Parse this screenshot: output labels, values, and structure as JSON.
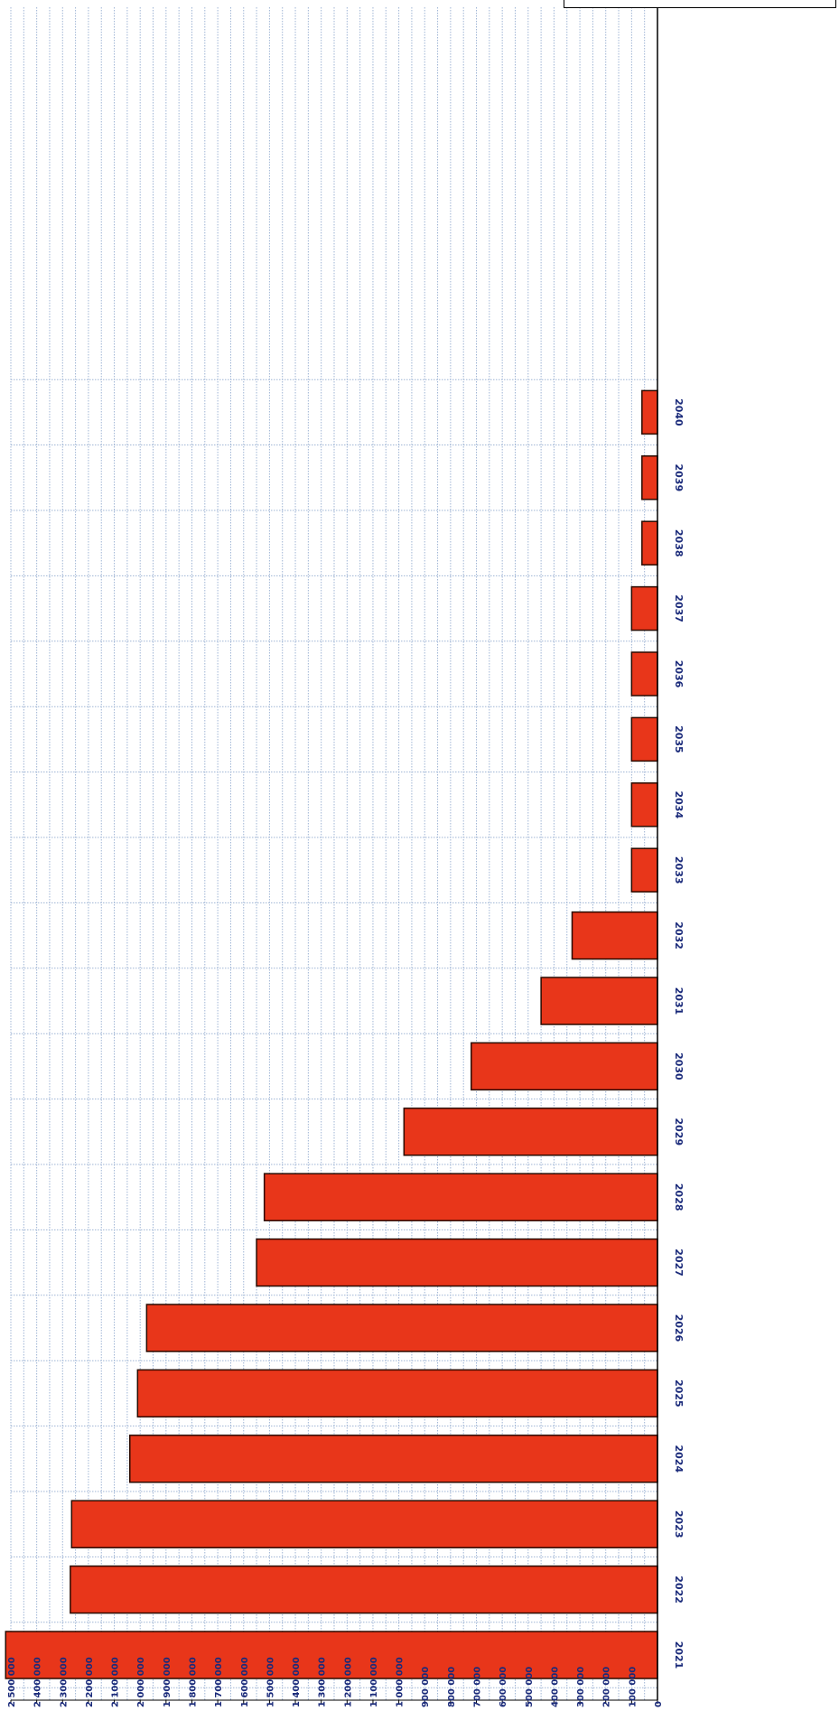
{
  "chart_data": {
    "type": "bar",
    "orientation": "horizontal",
    "categories": [
      "2021",
      "2022",
      "2023",
      "2024",
      "2025",
      "2026",
      "2027",
      "2028",
      "2029",
      "2030",
      "2031",
      "2032",
      "2033",
      "2034",
      "2035",
      "2036",
      "2037",
      "2038",
      "2039",
      "2040"
    ],
    "values": [
      2520000,
      2270000,
      2265000,
      2040000,
      2010000,
      1975000,
      1550000,
      1520000,
      980000,
      720000,
      450000,
      330000,
      100000,
      100000,
      100000,
      100000,
      100000,
      60000,
      60000,
      60000
    ],
    "xlim": [
      0,
      2500000
    ],
    "x_ticks": [
      "2 500 000",
      "2 400 000",
      "2 300 000",
      "2 200 000",
      "2 100 000",
      "2 000 000",
      "1 900 000",
      "1 800 000",
      "1 700 000",
      "1 600 000",
      "1 500 000",
      "1 400 000",
      "1 300 000",
      "1 200 000",
      "1 100 000",
      "1 000 000",
      "900 000",
      "800 000",
      "700 000",
      "600 000",
      "500 000",
      "400 000",
      "300 000",
      "200 000",
      "100 000",
      "0"
    ],
    "grid": true,
    "bar_color": "#e8361a",
    "grid_color": "#9fb5d5",
    "label_color": "#1a2a7a"
  }
}
